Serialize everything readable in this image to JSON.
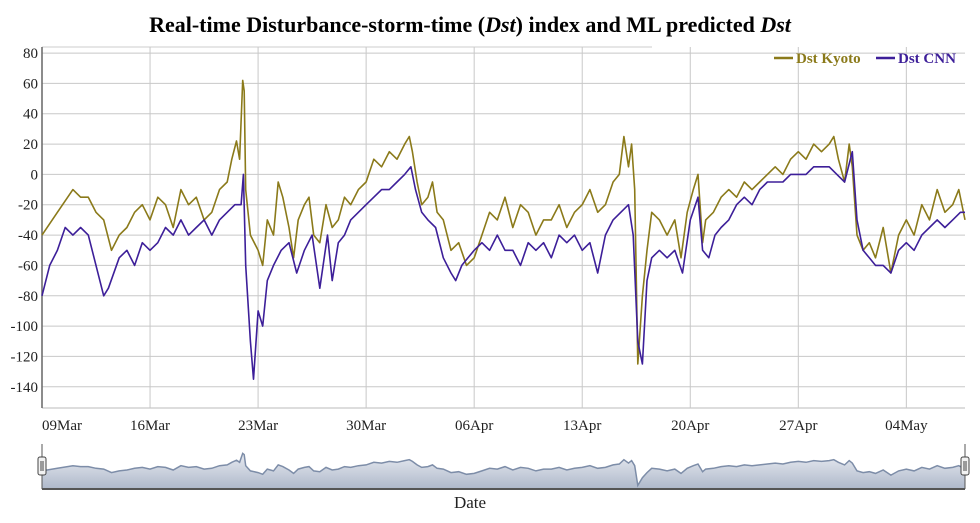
{
  "chart_data": {
    "type": "line",
    "title_parts": [
      "Real-time Disturbance-storm-time (",
      "Dst",
      ") index and ML predicted ",
      "Dst"
    ],
    "title": "Real-time Disturbance-storm-time (Dst) index and ML predicted Dst",
    "xlabel": "Date",
    "ylabel": "",
    "x_unit": "days since 09Mar",
    "xlim": [
      0,
      59.8
    ],
    "ylim": [
      -154,
      84
    ],
    "yticks": [
      80,
      60,
      40,
      20,
      0,
      -20,
      -40,
      -60,
      -80,
      -100,
      -120,
      -140
    ],
    "xticks": [
      {
        "day": 0,
        "label": "09Mar"
      },
      {
        "day": 7,
        "label": "16Mar"
      },
      {
        "day": 14,
        "label": "23Mar"
      },
      {
        "day": 21,
        "label": "30Mar"
      },
      {
        "day": 28,
        "label": "06Apr"
      },
      {
        "day": 35,
        "label": "13Apr"
      },
      {
        "day": 42,
        "label": "20Apr"
      },
      {
        "day": 49,
        "label": "27Apr"
      },
      {
        "day": 56,
        "label": "04May"
      }
    ],
    "grid": true,
    "legend_position": "top-right",
    "series": [
      {
        "name": "Dst Kyoto",
        "color": "#8b7a1a",
        "points": [
          [
            0,
            -40
          ],
          [
            1,
            -25
          ],
          [
            2,
            -10
          ],
          [
            2.5,
            -15
          ],
          [
            3,
            -15
          ],
          [
            3.5,
            -25
          ],
          [
            4,
            -30
          ],
          [
            4.5,
            -50
          ],
          [
            5,
            -40
          ],
          [
            5.5,
            -35
          ],
          [
            6,
            -25
          ],
          [
            6.5,
            -20
          ],
          [
            7,
            -30
          ],
          [
            7.5,
            -15
          ],
          [
            8,
            -20
          ],
          [
            8.5,
            -35
          ],
          [
            9,
            -10
          ],
          [
            9.5,
            -20
          ],
          [
            10,
            -15
          ],
          [
            10.5,
            -30
          ],
          [
            11,
            -25
          ],
          [
            11.5,
            -10
          ],
          [
            12,
            -5
          ],
          [
            12.3,
            10
          ],
          [
            12.6,
            22
          ],
          [
            12.8,
            10
          ],
          [
            13,
            62
          ],
          [
            13.1,
            55
          ],
          [
            13.2,
            -10
          ],
          [
            13.5,
            -40
          ],
          [
            14,
            -50
          ],
          [
            14.3,
            -60
          ],
          [
            14.6,
            -30
          ],
          [
            15,
            -40
          ],
          [
            15.3,
            -5
          ],
          [
            15.6,
            -15
          ],
          [
            16,
            -35
          ],
          [
            16.3,
            -55
          ],
          [
            16.6,
            -30
          ],
          [
            17,
            -20
          ],
          [
            17.3,
            -15
          ],
          [
            17.6,
            -40
          ],
          [
            18,
            -45
          ],
          [
            18.4,
            -20
          ],
          [
            18.8,
            -35
          ],
          [
            19.2,
            -30
          ],
          [
            19.6,
            -15
          ],
          [
            20,
            -20
          ],
          [
            20.5,
            -10
          ],
          [
            21,
            -5
          ],
          [
            21.5,
            10
          ],
          [
            22,
            5
          ],
          [
            22.5,
            15
          ],
          [
            23,
            10
          ],
          [
            23.5,
            20
          ],
          [
            23.8,
            25
          ],
          [
            24,
            15
          ],
          [
            24.3,
            -5
          ],
          [
            24.6,
            -20
          ],
          [
            25,
            -15
          ],
          [
            25.3,
            -5
          ],
          [
            25.6,
            -25
          ],
          [
            26,
            -30
          ],
          [
            26.5,
            -50
          ],
          [
            27,
            -45
          ],
          [
            27.5,
            -60
          ],
          [
            28,
            -55
          ],
          [
            28.5,
            -40
          ],
          [
            29,
            -25
          ],
          [
            29.5,
            -30
          ],
          [
            30,
            -15
          ],
          [
            30.5,
            -35
          ],
          [
            31,
            -20
          ],
          [
            31.5,
            -25
          ],
          [
            32,
            -40
          ],
          [
            32.5,
            -30
          ],
          [
            33,
            -30
          ],
          [
            33.5,
            -20
          ],
          [
            34,
            -35
          ],
          [
            34.5,
            -25
          ],
          [
            35,
            -20
          ],
          [
            35.5,
            -10
          ],
          [
            36,
            -25
          ],
          [
            36.5,
            -20
          ],
          [
            37,
            -5
          ],
          [
            37.4,
            0
          ],
          [
            37.7,
            25
          ],
          [
            38,
            5
          ],
          [
            38.2,
            20
          ],
          [
            38.4,
            -10
          ],
          [
            38.6,
            -125
          ],
          [
            38.9,
            -80
          ],
          [
            39.2,
            -50
          ],
          [
            39.5,
            -25
          ],
          [
            40,
            -30
          ],
          [
            40.5,
            -40
          ],
          [
            41,
            -30
          ],
          [
            41.4,
            -55
          ],
          [
            41.8,
            -25
          ],
          [
            42.2,
            -10
          ],
          [
            42.5,
            0
          ],
          [
            42.8,
            -45
          ],
          [
            43,
            -30
          ],
          [
            43.5,
            -25
          ],
          [
            44,
            -15
          ],
          [
            44.5,
            -10
          ],
          [
            45,
            -15
          ],
          [
            45.5,
            -5
          ],
          [
            46,
            -10
          ],
          [
            46.5,
            -5
          ],
          [
            47,
            0
          ],
          [
            47.5,
            5
          ],
          [
            48,
            0
          ],
          [
            48.5,
            10
          ],
          [
            49,
            15
          ],
          [
            49.5,
            10
          ],
          [
            50,
            20
          ],
          [
            50.5,
            15
          ],
          [
            51,
            20
          ],
          [
            51.3,
            25
          ],
          [
            51.6,
            10
          ],
          [
            52,
            -5
          ],
          [
            52.3,
            20
          ],
          [
            52.5,
            5
          ],
          [
            52.8,
            -40
          ],
          [
            53.2,
            -50
          ],
          [
            53.6,
            -45
          ],
          [
            54,
            -55
          ],
          [
            54.5,
            -35
          ],
          [
            55,
            -65
          ],
          [
            55.5,
            -40
          ],
          [
            56,
            -30
          ],
          [
            56.5,
            -40
          ],
          [
            57,
            -20
          ],
          [
            57.5,
            -30
          ],
          [
            58,
            -10
          ],
          [
            58.5,
            -25
          ],
          [
            59,
            -20
          ],
          [
            59.4,
            -10
          ],
          [
            59.8,
            -30
          ]
        ]
      },
      {
        "name": "Dst CNN",
        "color": "#3d1f99",
        "points": [
          [
            0,
            -80
          ],
          [
            0.5,
            -60
          ],
          [
            1,
            -50
          ],
          [
            1.5,
            -35
          ],
          [
            2,
            -40
          ],
          [
            2.5,
            -35
          ],
          [
            3,
            -40
          ],
          [
            3.5,
            -60
          ],
          [
            4,
            -80
          ],
          [
            4.3,
            -75
          ],
          [
            5,
            -55
          ],
          [
            5.5,
            -50
          ],
          [
            6,
            -60
          ],
          [
            6.5,
            -45
          ],
          [
            7,
            -50
          ],
          [
            7.5,
            -45
          ],
          [
            8,
            -35
          ],
          [
            8.5,
            -40
          ],
          [
            9,
            -30
          ],
          [
            9.5,
            -40
          ],
          [
            10,
            -35
          ],
          [
            10.5,
            -30
          ],
          [
            11,
            -40
          ],
          [
            11.5,
            -30
          ],
          [
            12,
            -25
          ],
          [
            12.5,
            -20
          ],
          [
            12.9,
            -20
          ],
          [
            13.05,
            0
          ],
          [
            13.2,
            -60
          ],
          [
            13.5,
            -110
          ],
          [
            13.7,
            -135
          ],
          [
            14,
            -90
          ],
          [
            14.3,
            -100
          ],
          [
            14.6,
            -70
          ],
          [
            15,
            -60
          ],
          [
            15.5,
            -50
          ],
          [
            16,
            -45
          ],
          [
            16.5,
            -65
          ],
          [
            17,
            -50
          ],
          [
            17.5,
            -40
          ],
          [
            18,
            -75
          ],
          [
            18.5,
            -40
          ],
          [
            18.8,
            -70
          ],
          [
            19.2,
            -45
          ],
          [
            19.6,
            -40
          ],
          [
            20,
            -30
          ],
          [
            20.5,
            -25
          ],
          [
            21,
            -20
          ],
          [
            21.5,
            -15
          ],
          [
            22,
            -10
          ],
          [
            22.5,
            -10
          ],
          [
            23,
            -5
          ],
          [
            23.5,
            0
          ],
          [
            23.9,
            5
          ],
          [
            24.2,
            -10
          ],
          [
            24.6,
            -25
          ],
          [
            25,
            -30
          ],
          [
            25.5,
            -35
          ],
          [
            26,
            -55
          ],
          [
            26.5,
            -65
          ],
          [
            26.8,
            -70
          ],
          [
            27.2,
            -60
          ],
          [
            27.6,
            -55
          ],
          [
            28,
            -50
          ],
          [
            28.5,
            -45
          ],
          [
            29,
            -50
          ],
          [
            29.5,
            -40
          ],
          [
            30,
            -50
          ],
          [
            30.5,
            -50
          ],
          [
            31,
            -60
          ],
          [
            31.5,
            -45
          ],
          [
            32,
            -50
          ],
          [
            32.5,
            -45
          ],
          [
            33,
            -55
          ],
          [
            33.5,
            -40
          ],
          [
            34,
            -45
          ],
          [
            34.5,
            -40
          ],
          [
            35,
            -50
          ],
          [
            35.5,
            -45
          ],
          [
            36,
            -65
          ],
          [
            36.5,
            -40
          ],
          [
            37,
            -30
          ],
          [
            37.5,
            -25
          ],
          [
            38,
            -20
          ],
          [
            38.3,
            -40
          ],
          [
            38.6,
            -110
          ],
          [
            38.9,
            -125
          ],
          [
            39.2,
            -70
          ],
          [
            39.5,
            -55
          ],
          [
            40,
            -50
          ],
          [
            40.5,
            -55
          ],
          [
            41,
            -50
          ],
          [
            41.5,
            -65
          ],
          [
            42,
            -30
          ],
          [
            42.5,
            -15
          ],
          [
            42.8,
            -50
          ],
          [
            43.2,
            -55
          ],
          [
            43.6,
            -40
          ],
          [
            44,
            -35
          ],
          [
            44.5,
            -30
          ],
          [
            45,
            -20
          ],
          [
            45.5,
            -15
          ],
          [
            46,
            -20
          ],
          [
            46.5,
            -10
          ],
          [
            47,
            -5
          ],
          [
            47.5,
            -5
          ],
          [
            48,
            -5
          ],
          [
            48.5,
            0
          ],
          [
            49,
            0
          ],
          [
            49.5,
            0
          ],
          [
            50,
            5
          ],
          [
            50.5,
            5
          ],
          [
            51,
            5
          ],
          [
            51.5,
            0
          ],
          [
            52,
            -5
          ],
          [
            52.5,
            15
          ],
          [
            52.8,
            -30
          ],
          [
            53.2,
            -50
          ],
          [
            53.6,
            -55
          ],
          [
            54,
            -60
          ],
          [
            54.5,
            -60
          ],
          [
            55,
            -65
          ],
          [
            55.5,
            -50
          ],
          [
            56,
            -45
          ],
          [
            56.5,
            -50
          ],
          [
            57,
            -40
          ],
          [
            57.5,
            -35
          ],
          [
            58,
            -30
          ],
          [
            58.5,
            -35
          ],
          [
            59,
            -30
          ],
          [
            59.5,
            -25
          ],
          [
            59.8,
            -25
          ]
        ]
      }
    ],
    "navigator": {
      "series": "Dst Kyoto",
      "fill_color": "#c5ccd9",
      "line_color": "#7d8da8"
    }
  }
}
